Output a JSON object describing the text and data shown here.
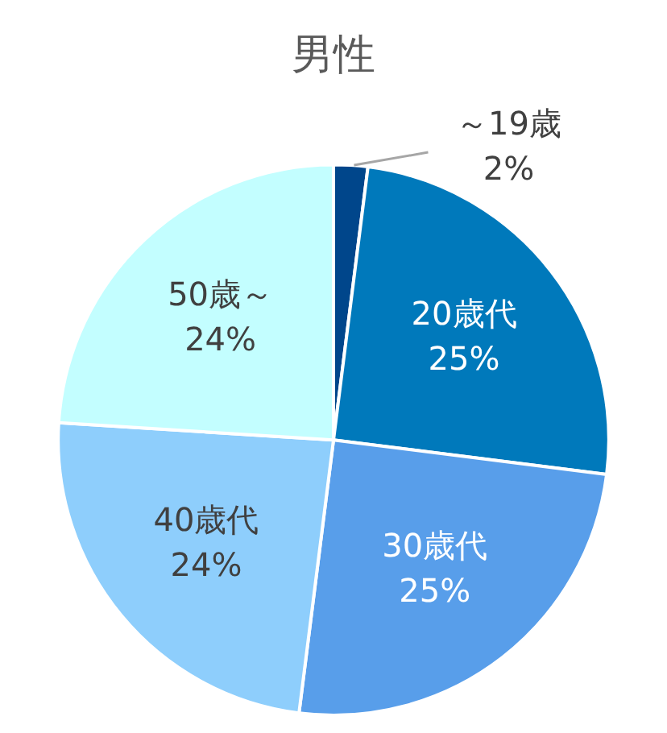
{
  "chart_data": {
    "type": "pie",
    "title": "男性",
    "categories": [
      "～19歳",
      "20歳代",
      "30歳代",
      "40歳代",
      "50歳～"
    ],
    "values": [
      2,
      25,
      25,
      24,
      24
    ],
    "value_labels": [
      "2%",
      "25%",
      "25%",
      "24%",
      "24%"
    ],
    "colors": [
      "#00468b",
      "#0079bb",
      "#589eea",
      "#8ecefc",
      "#c3feff"
    ]
  }
}
